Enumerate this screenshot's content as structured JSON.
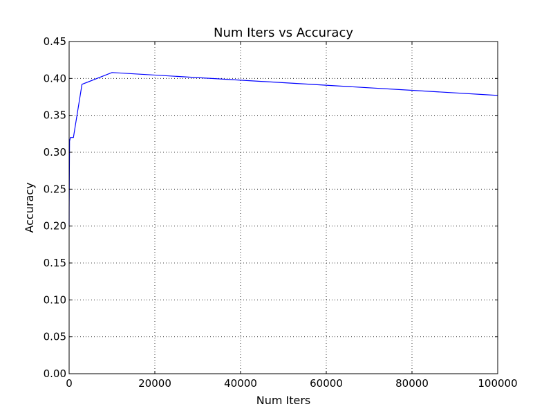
{
  "chart_data": {
    "type": "line",
    "title": "Num Iters vs Accuracy",
    "xlabel": "Num Iters",
    "ylabel": "Accuracy",
    "xlim": [
      0,
      100000
    ],
    "ylim": [
      0,
      0.45
    ],
    "x_ticks": [
      0,
      20000,
      40000,
      60000,
      80000,
      100000
    ],
    "x_tick_labels": [
      "0",
      "20000",
      "40000",
      "60000",
      "80000",
      "100000"
    ],
    "y_ticks": [
      0,
      0.05,
      0.1,
      0.15,
      0.2,
      0.25,
      0.3,
      0.35,
      0.4,
      0.45
    ],
    "y_tick_labels": [
      "0.00",
      "0.05",
      "0.10",
      "0.15",
      "0.20",
      "0.25",
      "0.30",
      "0.35",
      "0.40",
      "0.45"
    ],
    "grid": true,
    "series": [
      {
        "x": [
          1,
          10,
          100,
          300,
          1000,
          3000,
          10000,
          100000
        ],
        "y": [
          0.2,
          0.225,
          0.315,
          0.32,
          0.32,
          0.392,
          0.408,
          0.377
        ],
        "color": "#0000ff"
      }
    ]
  }
}
